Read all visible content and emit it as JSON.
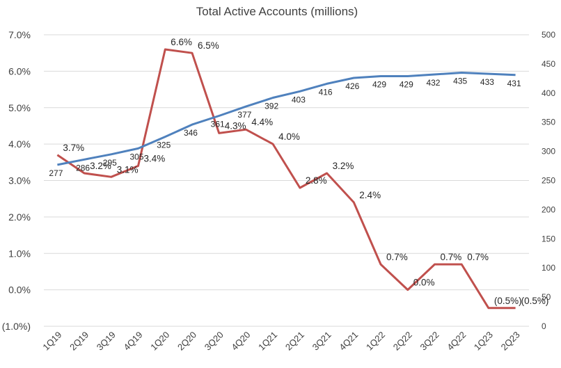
{
  "chart_data": {
    "type": "line",
    "title": "Total Active Accounts (millions)",
    "categories": [
      "1Q19",
      "2Q19",
      "3Q19",
      "4Q19",
      "1Q20",
      "2Q20",
      "3Q20",
      "4Q20",
      "1Q21",
      "2Q21",
      "3Q21",
      "4Q21",
      "1Q22",
      "2Q22",
      "3Q22",
      "4Q22",
      "1Q23",
      "2Q23"
    ],
    "left_axis": {
      "ylim": [
        -1.0,
        7.0
      ],
      "ticks": [
        -1.0,
        0.0,
        1.0,
        2.0,
        3.0,
        4.0,
        5.0,
        6.0,
        7.0
      ],
      "tick_labels": [
        "(1.0%)",
        "0.0%",
        "1.0%",
        "2.0%",
        "3.0%",
        "4.0%",
        "5.0%",
        "6.0%",
        "7.0%"
      ]
    },
    "right_axis": {
      "ylim": [
        0,
        500
      ],
      "ticks": [
        0,
        50,
        100,
        150,
        200,
        250,
        300,
        350,
        400,
        450,
        500
      ],
      "tick_labels": [
        "0",
        "50",
        "100",
        "150",
        "200",
        "250",
        "300",
        "350",
        "400",
        "450",
        "500"
      ]
    },
    "grid": true,
    "series": [
      {
        "color": "#c0504d",
        "axis": "left",
        "values": [
          3.7,
          3.2,
          3.1,
          3.4,
          6.6,
          6.5,
          4.3,
          4.4,
          4.0,
          2.8,
          3.2,
          2.4,
          0.7,
          0.0,
          0.7,
          0.7,
          -0.5,
          -0.5
        ],
        "labels": [
          "3.7%",
          "3.2%",
          "3.1%",
          "3.4%",
          "6.6%",
          "6.5%",
          "4.3%",
          "4.4%",
          "4.0%",
          "2.8%",
          "3.2%",
          "2.4%",
          "0.7%",
          "0.0%",
          "0.7%",
          "0.7%",
          "(0.5%)",
          "(0.5%)"
        ]
      },
      {
        "color": "#4f81bd",
        "axis": "right",
        "values": [
          277,
          286,
          295,
          305,
          325,
          346,
          361,
          377,
          392,
          403,
          416,
          426,
          429,
          429,
          432,
          435,
          433,
          431
        ],
        "labels": [
          "277",
          "286",
          "295",
          "305",
          "325",
          "346",
          "361",
          "377",
          "392",
          "403",
          "416",
          "426",
          "429",
          "429",
          "432",
          "435",
          "433",
          "431"
        ]
      }
    ]
  }
}
